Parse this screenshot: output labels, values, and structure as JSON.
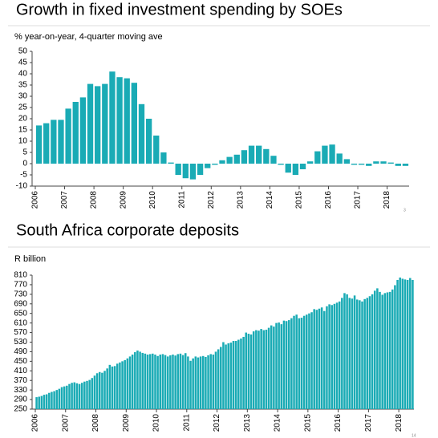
{
  "chart_data": [
    {
      "type": "bar",
      "title": "Growth in fixed investment spending by SOEs",
      "y_label": "% year-on-year, 4-quarter moving ave",
      "annotations": [
        "3"
      ],
      "color": "#1aabb5",
      "grid": false,
      "ylim": [
        -10,
        50
      ],
      "yticks": [
        -10,
        -5,
        0,
        5,
        10,
        15,
        20,
        25,
        30,
        35,
        40,
        45,
        50
      ],
      "categories": [
        "2006",
        null,
        null,
        null,
        "2007",
        null,
        null,
        null,
        "2008",
        null,
        null,
        null,
        "2009",
        null,
        null,
        null,
        "2010",
        null,
        null,
        null,
        "2011",
        null,
        null,
        null,
        "2012",
        null,
        null,
        null,
        "2013",
        null,
        null,
        null,
        "2014",
        null,
        null,
        null,
        "2015",
        null,
        null,
        null,
        "2016",
        null,
        null,
        null,
        "2017",
        null,
        null,
        null,
        "2018",
        null,
        null
      ],
      "values": [
        17,
        18,
        19.5,
        19.5,
        24.5,
        27.5,
        29.5,
        35.5,
        34.5,
        35.5,
        41,
        38.5,
        38,
        36,
        26.5,
        20,
        12.5,
        5,
        0.5,
        -5,
        -6.5,
        -7,
        -5,
        -2,
        -0.5,
        1.5,
        3,
        4,
        6,
        8,
        8,
        6.5,
        3.5,
        -0.5,
        -4,
        -5,
        -2.5,
        1,
        5.5,
        8,
        8.5,
        4.5,
        2,
        -0.5,
        -0.5,
        -1,
        1,
        1,
        0.5,
        -1,
        -1
      ]
    },
    {
      "type": "bar",
      "title": "South Africa corporate deposits",
      "y_label": "R billion",
      "annotations": [
        "14"
      ],
      "color": "#1aabb5",
      "grid": false,
      "ylim": [
        250,
        810
      ],
      "yticks": [
        250,
        290,
        330,
        370,
        410,
        450,
        490,
        530,
        570,
        610,
        650,
        690,
        730,
        770,
        810
      ],
      "categories": [
        "2006",
        null,
        null,
        null,
        null,
        null,
        null,
        null,
        null,
        null,
        null,
        null,
        "2007",
        null,
        null,
        null,
        null,
        null,
        null,
        null,
        null,
        null,
        null,
        null,
        "2008",
        null,
        null,
        null,
        null,
        null,
        null,
        null,
        null,
        null,
        null,
        null,
        "2009",
        null,
        null,
        null,
        null,
        null,
        null,
        null,
        null,
        null,
        null,
        null,
        "2010",
        null,
        null,
        null,
        null,
        null,
        null,
        null,
        null,
        null,
        null,
        null,
        "2011",
        null,
        null,
        null,
        null,
        null,
        null,
        null,
        null,
        null,
        null,
        null,
        "2012",
        null,
        null,
        null,
        null,
        null,
        null,
        null,
        null,
        null,
        null,
        null,
        "2013",
        null,
        null,
        null,
        null,
        null,
        null,
        null,
        null,
        null,
        null,
        null,
        "2014",
        null,
        null,
        null,
        null,
        null,
        null,
        null,
        null,
        null,
        null,
        null,
        "2015",
        null,
        null,
        null,
        null,
        null,
        null,
        null,
        null,
        null,
        null,
        null,
        "2016",
        null,
        null,
        null,
        null,
        null,
        null,
        null,
        null,
        null,
        null,
        null,
        "2017",
        null,
        null,
        null,
        null,
        null,
        null,
        null,
        null,
        null,
        null,
        null,
        "2018",
        null,
        null,
        null,
        null,
        null
      ],
      "values": [
        300,
        302,
        305,
        310,
        312,
        318,
        322,
        325,
        330,
        335,
        342,
        345,
        348,
        355,
        360,
        362,
        358,
        355,
        360,
        365,
        368,
        372,
        380,
        390,
        400,
        405,
        402,
        410,
        420,
        435,
        428,
        430,
        440,
        445,
        450,
        455,
        462,
        470,
        478,
        488,
        495,
        490,
        485,
        482,
        478,
        480,
        482,
        478,
        472,
        478,
        480,
        476,
        470,
        475,
        478,
        474,
        480,
        482,
        476,
        484,
        470,
        452,
        462,
        470,
        466,
        470,
        472,
        468,
        475,
        480,
        478,
        490,
        500,
        510,
        530,
        520,
        525,
        528,
        535,
        535,
        540,
        545,
        552,
        570,
        565,
        562,
        575,
        580,
        578,
        585,
        580,
        582,
        590,
        600,
        595,
        610,
        612,
        605,
        620,
        618,
        622,
        630,
        640,
        645,
        630,
        632,
        640,
        645,
        650,
        655,
        668,
        665,
        670,
        675,
        660,
        680,
        688,
        685,
        690,
        695,
        700,
        715,
        735,
        730,
        715,
        712,
        725,
        708,
        705,
        700,
        710,
        715,
        722,
        730,
        745,
        755,
        740,
        728,
        735,
        738,
        740,
        750,
        768,
        790,
        800,
        795,
        792,
        790,
        798,
        790
      ]
    }
  ]
}
